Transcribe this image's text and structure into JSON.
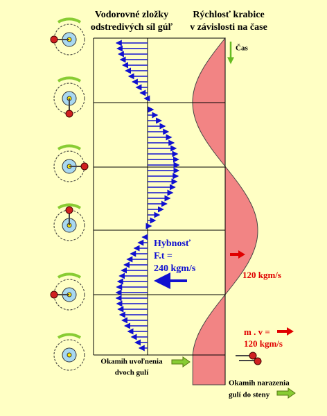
{
  "left_title": [
    "Vodorovné  zložky",
    "odstredivých síl gúľ"
  ],
  "right_title": [
    "Rýchlosť krabice",
    "v závislosti na čase"
  ],
  "time_label": "Čas",
  "momentum": [
    "Hybnosť",
    "F.t =",
    "240 kgm/s"
  ],
  "velocity_momentum": "120 kgm/s",
  "final_momentum": [
    "m . v =",
    "120 kgm/s"
  ],
  "release": [
    "Okamih uvoľnenia",
    "dvoch gulí"
  ],
  "impact": [
    "Okamih narazenia",
    "gulí do steny"
  ]
}
